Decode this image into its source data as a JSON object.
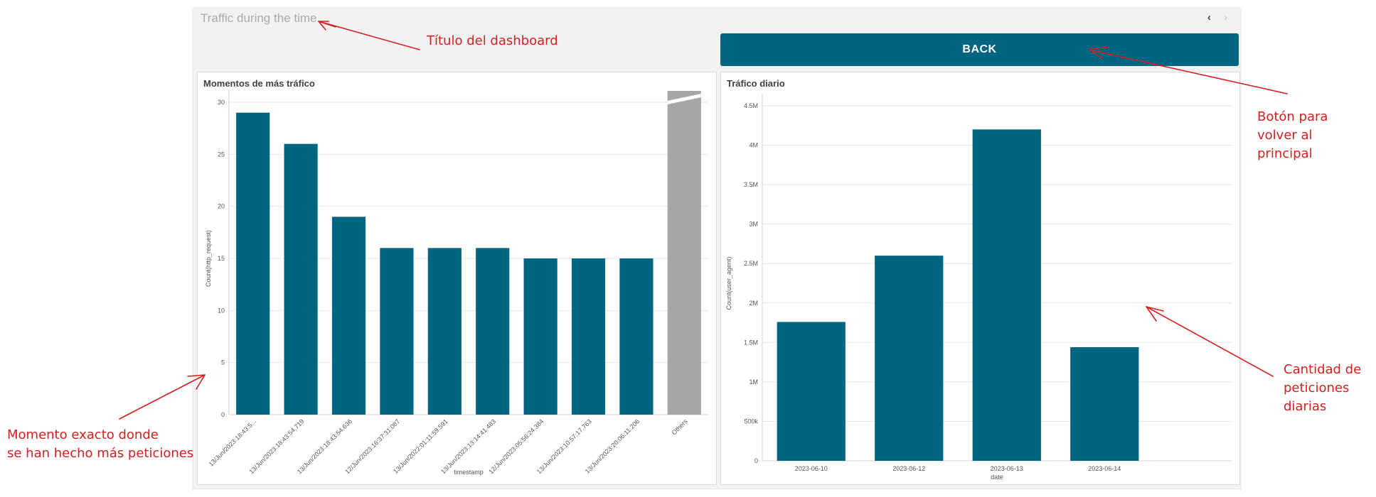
{
  "dashboard": {
    "title": "Traffic during the time",
    "back_label": "BACK",
    "nav": {
      "prev": "‹",
      "next": "›"
    }
  },
  "panels": {
    "left": {
      "title": "Momentos de más tráfico"
    },
    "right": {
      "title": "Tráfico diario"
    }
  },
  "chart_data": [
    {
      "type": "bar",
      "title": "Momentos de más tráfico",
      "xlabel": "timestamp",
      "ylabel": "Count(http_request)",
      "ylim": [
        0,
        30
      ],
      "yticks": [
        0,
        5,
        10,
        15,
        20,
        25,
        30
      ],
      "categories": [
        "13/Jun/2023:18:43:5...",
        "13/Jun/2023:18:43:54.719",
        "13/Jun/2023:18:43:54.636",
        "12/Jun/2023:16:37:31.087",
        "13/Jun/2022:01:11:59.591",
        "13/Jun/2023:13:14:41.483",
        "12/Jun/2023:05:56:24.384",
        "13/Jun/2023:10:57:17.763",
        "13/Jun/2023:20:06:11.206",
        "Others"
      ],
      "values": [
        29,
        26,
        19,
        16,
        16,
        16,
        15,
        15,
        15,
        null
      ],
      "others_bar_color": "#a6a6a6",
      "bar_color": "#006580",
      "grid": true
    },
    {
      "type": "bar",
      "title": "Tráfico diario",
      "xlabel": "date",
      "ylabel": "Count(user_agent)",
      "ylim": [
        0,
        4500000
      ],
      "yticks": [
        0,
        500000,
        1000000,
        1500000,
        2000000,
        2500000,
        3000000,
        3500000,
        4000000,
        4500000
      ],
      "ytick_labels": [
        "0",
        "500k",
        "1M",
        "1.5M",
        "2M",
        "2.5M",
        "3M",
        "3.5M",
        "4M",
        "4.5M"
      ],
      "categories": [
        "2023-06-10",
        "2023-06-12",
        "2023-06-13",
        "2023-06-14"
      ],
      "values": [
        1760000,
        2600000,
        4200000,
        1440000
      ],
      "bar_color": "#006580",
      "grid": true
    }
  ],
  "annotations": {
    "title_note": "Título del dashboard",
    "back_note": [
      "Botón para",
      "volver al",
      "principal"
    ],
    "daily_note": [
      "Cantidad de",
      "peticiones",
      "diarias"
    ],
    "moment_note": [
      "Momento exacto donde",
      "se han hecho más peticiones"
    ],
    "color": "#d42020"
  }
}
